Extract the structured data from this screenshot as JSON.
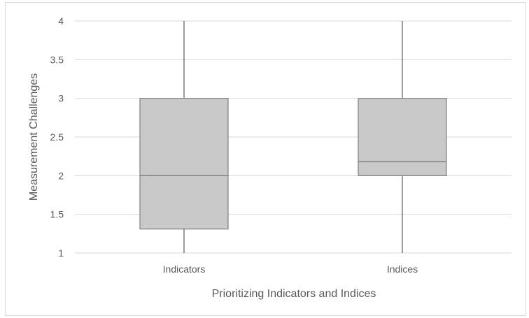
{
  "chart_data": {
    "type": "box",
    "title": "",
    "xlabel": "Prioritizing Indicators and Indices",
    "ylabel": "Measurement Challenges",
    "ylim": [
      1,
      4
    ],
    "yticks": [
      1,
      1.5,
      2,
      2.5,
      3,
      3.5,
      4
    ],
    "ytick_labels": [
      "1",
      "1.5",
      "2",
      "2.5",
      "3",
      "3.5",
      "4"
    ],
    "grid": true,
    "categories": [
      "Indicators",
      "Indices"
    ],
    "boxes": [
      {
        "category": "Indicators",
        "min": 1,
        "q1": 1.31,
        "median": 2,
        "q3": 3,
        "max": 4
      },
      {
        "category": "Indices",
        "min": 1,
        "q1": 2,
        "median": 2.18,
        "q3": 3,
        "max": 4
      }
    ],
    "colors": {
      "box_fill": "#c9c9c9",
      "box_stroke": "#7f7f7f",
      "whisker": "#595959",
      "grid": "#d9d9d9",
      "border": "#d9d9d9"
    }
  }
}
